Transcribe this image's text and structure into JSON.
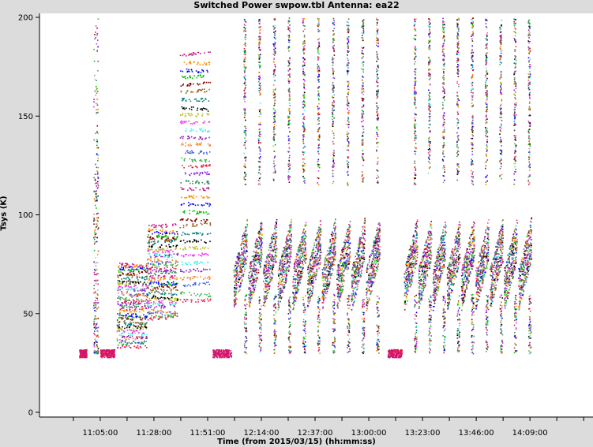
{
  "chart_data": {
    "type": "scatter",
    "title": "Switched Power  swpow.tbl   Antenna: ea22",
    "xlabel": "Time (from 2015/03/15) (hh:mm:ss)",
    "ylabel": "Tsys (K)",
    "ylim": [
      0,
      200
    ],
    "xlim": [
      "10:39:00",
      "14:36:00"
    ],
    "y_ticks": [
      0,
      50,
      100,
      150,
      200
    ],
    "x_ticks": [
      "11:05:00",
      "11:28:00",
      "11:51:00",
      "12:14:00",
      "12:37:00",
      "13:00:00",
      "13:23:00",
      "13:46:00",
      "14:09:00"
    ],
    "grid": false,
    "legend": "none",
    "colors": [
      "#e6194b",
      "#3cb44b",
      "#4363d8",
      "#f58231",
      "#911eb4",
      "#46f0f0",
      "#f032e6",
      "#bcbd22",
      "#000000",
      "#008080",
      "#9a6324",
      "#800000",
      "#00c000",
      "#0000ff",
      "#ff8c00",
      "#c71585",
      "#2e8b57",
      "#8a2be2"
    ],
    "segments": [
      {
        "start": "10:56:00",
        "end": "10:59:00",
        "tsys_min": 28,
        "tsys_max": 32,
        "pattern": "flat"
      },
      {
        "start": "11:02:00",
        "end": "11:04:00",
        "tsys_min": 30,
        "tsys_max": 200,
        "pattern": "spike"
      },
      {
        "start": "11:05:00",
        "end": "11:11:00",
        "tsys_min": 28,
        "tsys_max": 32,
        "pattern": "flat"
      },
      {
        "start": "11:12:00",
        "end": "11:25:00",
        "tsys_min": 33,
        "tsys_max": 76,
        "pattern": "bands"
      },
      {
        "start": "11:25:00",
        "end": "11:38:00",
        "tsys_min": 47,
        "tsys_max": 95,
        "pattern": "bands"
      },
      {
        "start": "11:39:00",
        "end": "11:52:00",
        "tsys_min": 55,
        "tsys_max": 183,
        "pattern": "bands"
      },
      {
        "start": "11:53:00",
        "end": "12:01:00",
        "tsys_min": 28,
        "tsys_max": 32,
        "pattern": "flat"
      },
      {
        "start": "12:02:00",
        "end": "13:05:00",
        "tsys_min": 30,
        "tsys_max": 200,
        "pattern": "cycles",
        "cycles": 10
      },
      {
        "start": "13:08:00",
        "end": "13:14:00",
        "tsys_min": 28,
        "tsys_max": 32,
        "pattern": "flat"
      },
      {
        "start": "13:15:00",
        "end": "14:10:00",
        "tsys_min": 30,
        "tsys_max": 200,
        "pattern": "cycles",
        "cycles": 9
      }
    ]
  }
}
